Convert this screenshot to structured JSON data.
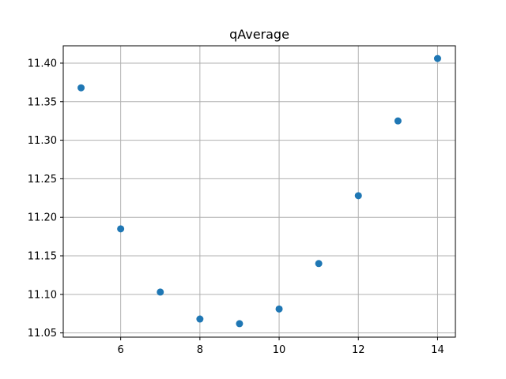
{
  "chart_data": {
    "type": "scatter",
    "title": "qAverage",
    "xlabel": "",
    "ylabel": "",
    "xlim": [
      4.55,
      14.45
    ],
    "ylim": [
      11.0445,
      11.4225
    ],
    "x_ticks": [
      6,
      8,
      10,
      12,
      14
    ],
    "y_ticks": [
      11.05,
      11.1,
      11.15,
      11.2,
      11.25,
      11.3,
      11.35,
      11.4
    ],
    "x_tick_labels": [
      "6",
      "8",
      "10",
      "12",
      "14"
    ],
    "y_tick_labels": [
      "11.05",
      "11.10",
      "11.15",
      "11.20",
      "11.25",
      "11.30",
      "11.35",
      "11.40"
    ],
    "grid": true,
    "series": [
      {
        "color": "#1f77b4",
        "x": [
          5,
          6,
          7,
          8,
          9,
          10,
          11,
          12,
          13,
          14
        ],
        "y": [
          11.368,
          11.185,
          11.103,
          11.068,
          11.062,
          11.081,
          11.14,
          11.228,
          11.325,
          11.406
        ]
      }
    ]
  }
}
